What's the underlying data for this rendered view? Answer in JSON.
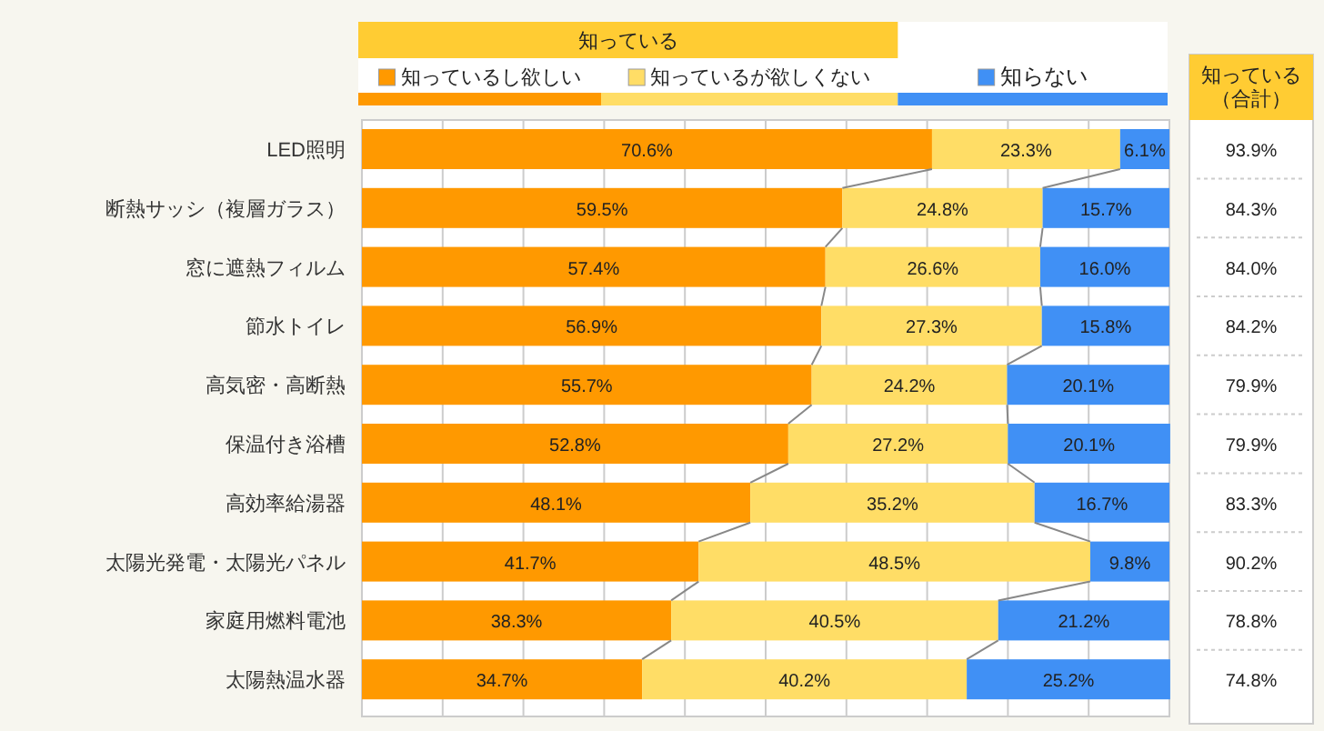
{
  "chart_data": {
    "type": "bar",
    "orientation": "horizontal",
    "stacked": true,
    "legend_title": "知っている",
    "categories": [
      "LED照明",
      "断熱サッシ（複層ガラス）",
      "窓に遮熱フィルム",
      "節水トイレ",
      "高気密・高断熱",
      "保温付き浴槽",
      "高効率給湯器",
      "太陽光発電・太陽光パネル",
      "家庭用燃料電池",
      "太陽熱温水器"
    ],
    "series": [
      {
        "name": "知っているし欲しい",
        "color": "#ff9900",
        "values": [
          70.6,
          59.5,
          57.4,
          56.9,
          55.7,
          52.8,
          48.1,
          41.7,
          38.3,
          34.7
        ],
        "value_labels": [
          "70.6%",
          "59.5%",
          "57.4%",
          "56.9%",
          "55.7%",
          "52.8%",
          "48.1%",
          "41.7%",
          "38.3%",
          "34.7%"
        ]
      },
      {
        "name": "知っているが欲しくない",
        "color": "#ffdd66",
        "values": [
          23.3,
          24.8,
          26.6,
          27.3,
          24.2,
          27.2,
          35.2,
          48.5,
          40.5,
          40.2
        ],
        "value_labels": [
          "23.3%",
          "24.8%",
          "26.6%",
          "27.3%",
          "24.2%",
          "27.2%",
          "35.2%",
          "48.5%",
          "40.5%",
          "40.2%"
        ]
      },
      {
        "name": "知らない",
        "color": "#4090f5",
        "values": [
          6.1,
          15.7,
          16.0,
          15.8,
          20.1,
          20.1,
          16.7,
          9.8,
          21.2,
          25.2
        ],
        "value_labels": [
          "6.1%",
          "15.7%",
          "16.0%",
          "15.8%",
          "20.1%",
          "20.1%",
          "16.7%",
          "9.8%",
          "21.2%",
          "25.2%"
        ]
      }
    ],
    "annotations": [
      "知っている（合計）",
      "93.9%",
      "84.3%",
      "84.0%",
      "84.2%",
      "79.9%",
      "79.9%",
      "83.3%",
      "90.2%",
      "78.8%",
      "74.8%"
    ],
    "xlim": [
      0,
      100
    ],
    "xticks": [
      0,
      10,
      20,
      30,
      40,
      50,
      60,
      70,
      80,
      90,
      100
    ],
    "tick_labels": "y",
    "grid": "x",
    "legend": "top"
  }
}
